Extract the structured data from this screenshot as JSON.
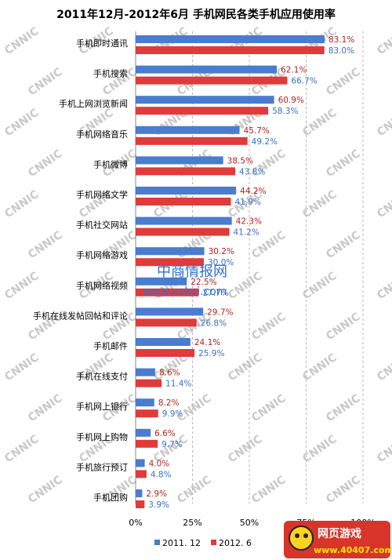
{
  "chart_data": {
    "type": "bar",
    "orientation": "horizontal",
    "title": "2011年12月-2012年6月 手机网民各类手机应用使用率",
    "categories": [
      "手机即时通讯",
      "手机搜索",
      "手机上网浏览新闻",
      "手机网络音乐",
      "手机微博",
      "手机网络文学",
      "手机社交网站",
      "手机网络游戏",
      "手机网络视频",
      "手机在线发帖回帖和评论",
      "手机邮件",
      "手机在线支付",
      "手机网上银行",
      "手机网上购物",
      "手机旅行预订",
      "手机团购"
    ],
    "series": [
      {
        "name": "2011. 12",
        "color": "#4a7ccf",
        "label_color": "#b22222",
        "values": [
          83.1,
          62.1,
          60.9,
          45.7,
          38.5,
          44.2,
          42.3,
          30.2,
          22.5,
          29.7,
          24.1,
          8.6,
          8.2,
          6.6,
          4.0,
          2.9
        ]
      },
      {
        "name": "2012. 6",
        "color": "#e03a3a",
        "label_color": "#3a6ec4",
        "values": [
          83.0,
          66.7,
          58.3,
          49.2,
          43.8,
          41.9,
          41.2,
          30.0,
          27.7,
          26.8,
          25.9,
          11.4,
          9.9,
          9.7,
          4.8,
          3.9
        ]
      }
    ],
    "value_labels": [
      [
        "83.1%",
        "62.1%",
        "60.9%",
        "45.7%",
        "38.5%",
        "44.2%",
        "42.3%",
        "30.2%",
        "22.5%",
        "29.7%",
        "24.1%",
        "8.6%",
        "8.2%",
        "6.6%",
        "4.0%",
        "2.9%"
      ],
      [
        "83.0%",
        "66.7%",
        "58.3%",
        "49.2%",
        "43.8%",
        "41.9%",
        "41.2%",
        "30.0%",
        "27.7%",
        "26.8%",
        "25.9%",
        "11.4%",
        "9.9%",
        "9.7%",
        "4.8%",
        "3.9%"
      ]
    ],
    "x_ticks": [
      "0%",
      "25%",
      "50%",
      "75%",
      "100%"
    ],
    "xlim": [
      0,
      100
    ],
    "grid": "vertical dashed",
    "legend": "bottom"
  },
  "watermark": {
    "text": "CNNIC",
    "site_name": "中商情报网",
    "site_url": "www.askci.com"
  },
  "logo": {
    "title": "网页游戏",
    "url": "www.40407.com"
  }
}
